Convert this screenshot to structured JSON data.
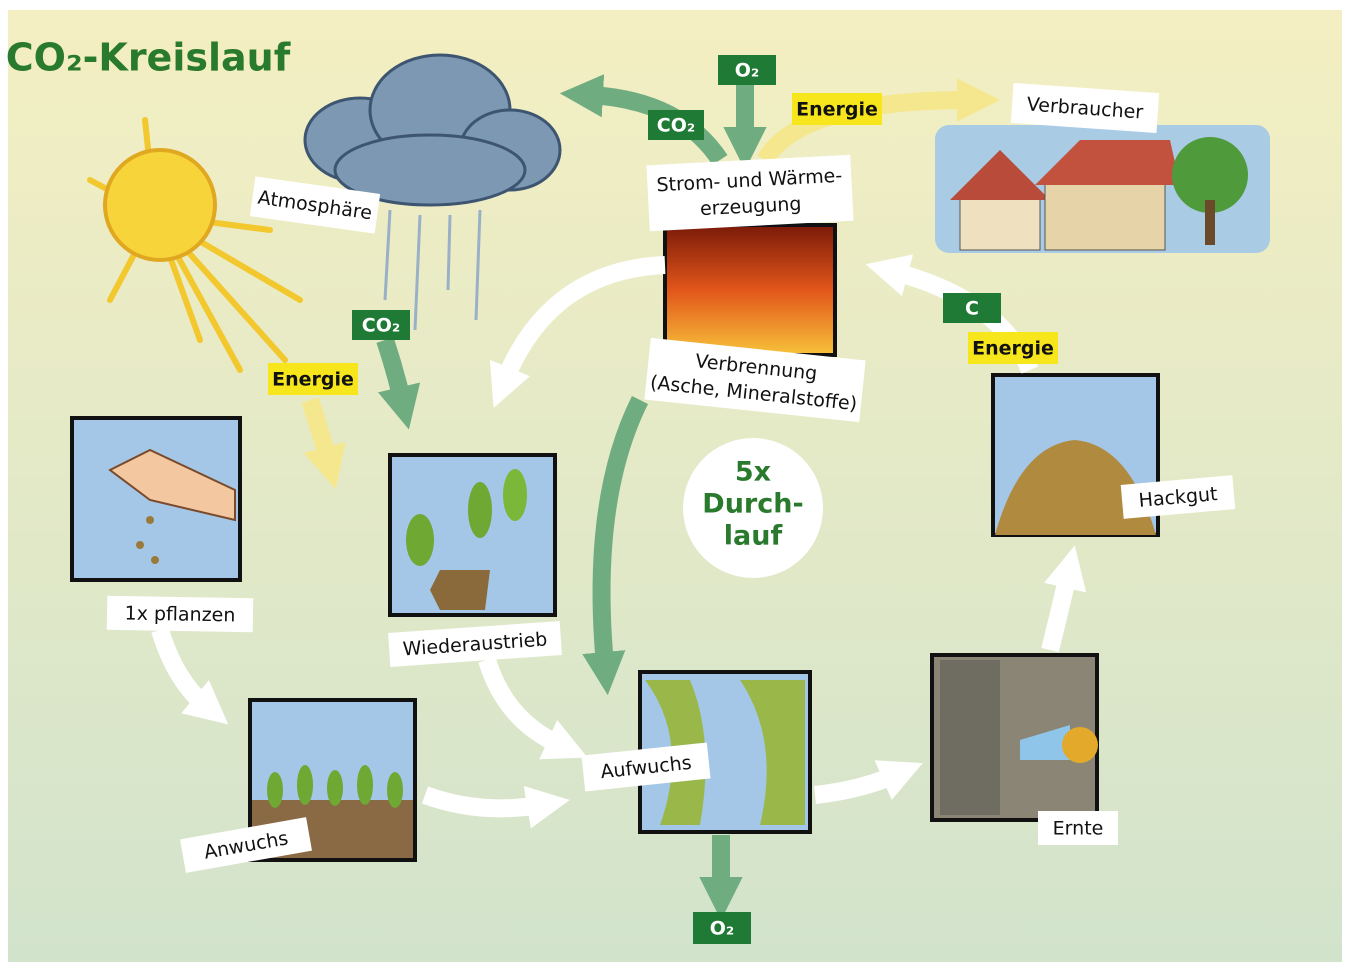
{
  "title": "CO₂-Kreislauf",
  "nodes": [
    {
      "label": "Atmosphäre"
    },
    {
      "label": "Verbraucher"
    },
    {
      "label": [
        "Strom- und Wärme-",
        "erzeugung"
      ]
    },
    {
      "label": [
        "Verbrennung",
        "(Asche, Mineralstoffe)"
      ]
    },
    {
      "label": "1x pflanzen"
    },
    {
      "label": "Wiederaustrieb"
    },
    {
      "label": "Hackgut"
    },
    {
      "label": "Anwuchs"
    },
    {
      "label": "Aufwuchs"
    },
    {
      "label": "Ernte"
    }
  ],
  "tags": [
    {
      "label": "O₂"
    },
    {
      "label": "CO₂"
    },
    {
      "label": "Energie"
    },
    {
      "label": "CO₂"
    },
    {
      "label": "Energie"
    },
    {
      "label": "C"
    },
    {
      "label": "Energie"
    },
    {
      "label": "O₂"
    }
  ],
  "center": [
    "5x",
    "Durch-",
    "lauf"
  ]
}
